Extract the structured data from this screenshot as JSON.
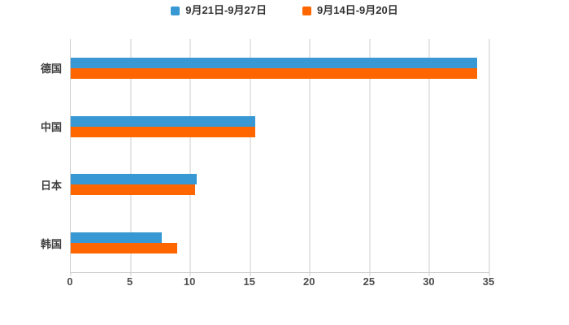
{
  "chart_data": {
    "type": "bar",
    "orientation": "horizontal",
    "title": "",
    "xlabel": "",
    "ylabel": "",
    "categories": [
      "德国",
      "中国",
      "日本",
      "韩国"
    ],
    "series": [
      {
        "name": "9月21日-9月27日",
        "color": "#3798D3",
        "values": [
          34,
          15.4,
          10.5,
          7.6
        ]
      },
      {
        "name": "9月14日-9月20日",
        "color": "#FF6600",
        "values": [
          34,
          15.4,
          10.4,
          8.9
        ]
      }
    ],
    "xlim": [
      0,
      35
    ],
    "x_ticks": [
      0,
      5,
      10,
      15,
      20,
      25,
      30,
      35
    ],
    "grid": true,
    "legend_position": "top"
  },
  "colors": {
    "background": "#FFFFFF",
    "grid": "#CCCCCC",
    "axis": "#CCCCCC",
    "tick_text": "#4D4D4D",
    "category_text": "#404040",
    "legend_text": "#333333"
  }
}
